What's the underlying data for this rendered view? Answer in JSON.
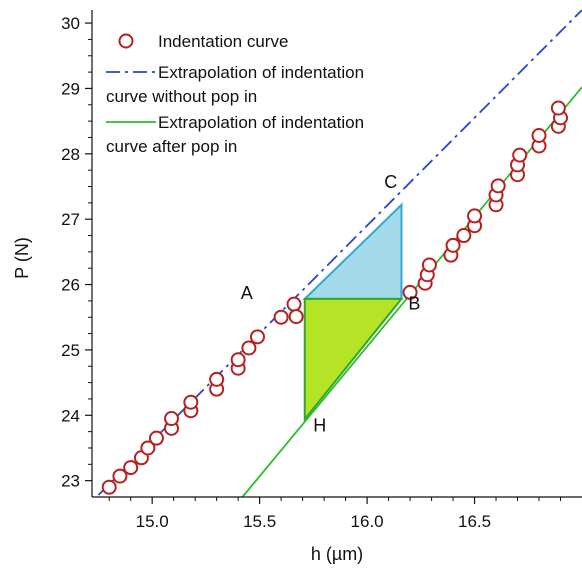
{
  "chart_data": {
    "type": "scatter",
    "xlabel": "h (µm)",
    "ylabel": "P (N)",
    "xlim": [
      14.72,
      17.0
    ],
    "ylim": [
      22.75,
      30.2
    ],
    "xticks": [
      15.0,
      15.5,
      16.0,
      16.5
    ],
    "xtick_labels": [
      "15.0",
      "15.5",
      "16.0",
      "16.5"
    ],
    "yticks": [
      23,
      24,
      25,
      26,
      27,
      28,
      29,
      30
    ],
    "ytick_labels": [
      "23",
      "24",
      "25",
      "26",
      "27",
      "28",
      "29",
      "30"
    ],
    "legend": {
      "placement": "top-left",
      "entries": [
        {
          "label": "Indentation curve",
          "marker": "circle",
          "color": "#b52121"
        },
        {
          "label": "Extrapolation of indentation",
          "label2": "curve without pop in",
          "marker": "dash-dot",
          "color": "#2846c8"
        },
        {
          "label": "Extrapolation of indentation",
          "label2": "curve  after pop in",
          "marker": "line",
          "color": "#2ebd2e"
        }
      ]
    },
    "series": [
      {
        "name": "Indentation curve",
        "color": "#b52121",
        "points": [
          [
            14.8,
            22.9
          ],
          [
            14.85,
            23.07
          ],
          [
            14.9,
            23.2
          ],
          [
            14.95,
            23.35
          ],
          [
            14.98,
            23.5
          ],
          [
            15.02,
            23.65
          ],
          [
            15.09,
            23.8
          ],
          [
            15.09,
            23.95
          ],
          [
            15.18,
            24.07
          ],
          [
            15.18,
            24.2
          ],
          [
            15.3,
            24.4
          ],
          [
            15.3,
            24.55
          ],
          [
            15.4,
            24.72
          ],
          [
            15.4,
            24.85
          ],
          [
            15.45,
            25.03
          ],
          [
            15.49,
            25.2
          ],
          [
            15.6,
            25.5
          ],
          [
            15.66,
            25.7
          ],
          [
            15.67,
            25.51
          ],
          [
            16.2,
            25.88
          ],
          [
            16.27,
            26.02
          ],
          [
            16.28,
            26.15
          ],
          [
            16.29,
            26.3
          ],
          [
            16.39,
            26.45
          ],
          [
            16.4,
            26.6
          ],
          [
            16.45,
            26.75
          ],
          [
            16.5,
            26.9
          ],
          [
            16.5,
            27.05
          ],
          [
            16.6,
            27.22
          ],
          [
            16.6,
            27.37
          ],
          [
            16.61,
            27.51
          ],
          [
            16.7,
            27.68
          ],
          [
            16.7,
            27.83
          ],
          [
            16.71,
            27.98
          ],
          [
            16.8,
            28.12
          ],
          [
            16.8,
            28.28
          ],
          [
            16.89,
            28.42
          ],
          [
            16.9,
            28.55
          ],
          [
            16.89,
            28.7
          ]
        ]
      }
    ],
    "lines": [
      {
        "name": "Extrapolation of indentation curve without pop in",
        "style": "dash-dot",
        "color": "#2846c8",
        "from": [
          14.75,
          22.78
        ],
        "to": [
          17.0,
          30.2
        ]
      },
      {
        "name": "Extrapolation of indentation curve after pop in",
        "style": "solid",
        "color": "#2ebd2e",
        "from": [
          15.42,
          22.75
        ],
        "to": [
          17.0,
          29.02
        ]
      }
    ],
    "triangles": [
      {
        "name": "upper-triangle",
        "fill": "#a4dbea",
        "stroke": "#2da8d8",
        "vertices": [
          [
            15.71,
            25.78
          ],
          [
            16.16,
            25.78
          ],
          [
            16.16,
            27.22
          ]
        ]
      },
      {
        "name": "lower-triangle",
        "fill": "#b4e425",
        "stroke": "#2ea82e",
        "vertices": [
          [
            15.71,
            25.78
          ],
          [
            16.16,
            25.78
          ],
          [
            15.71,
            23.94
          ]
        ]
      }
    ],
    "annotations": [
      {
        "text": "A",
        "at": [
          15.44,
          25.78
        ]
      },
      {
        "text": "B",
        "at": [
          16.22,
          25.62
        ]
      },
      {
        "text": "C",
        "at": [
          16.11,
          27.48
        ]
      },
      {
        "text": "H",
        "at": [
          15.78,
          23.75
        ]
      }
    ]
  }
}
